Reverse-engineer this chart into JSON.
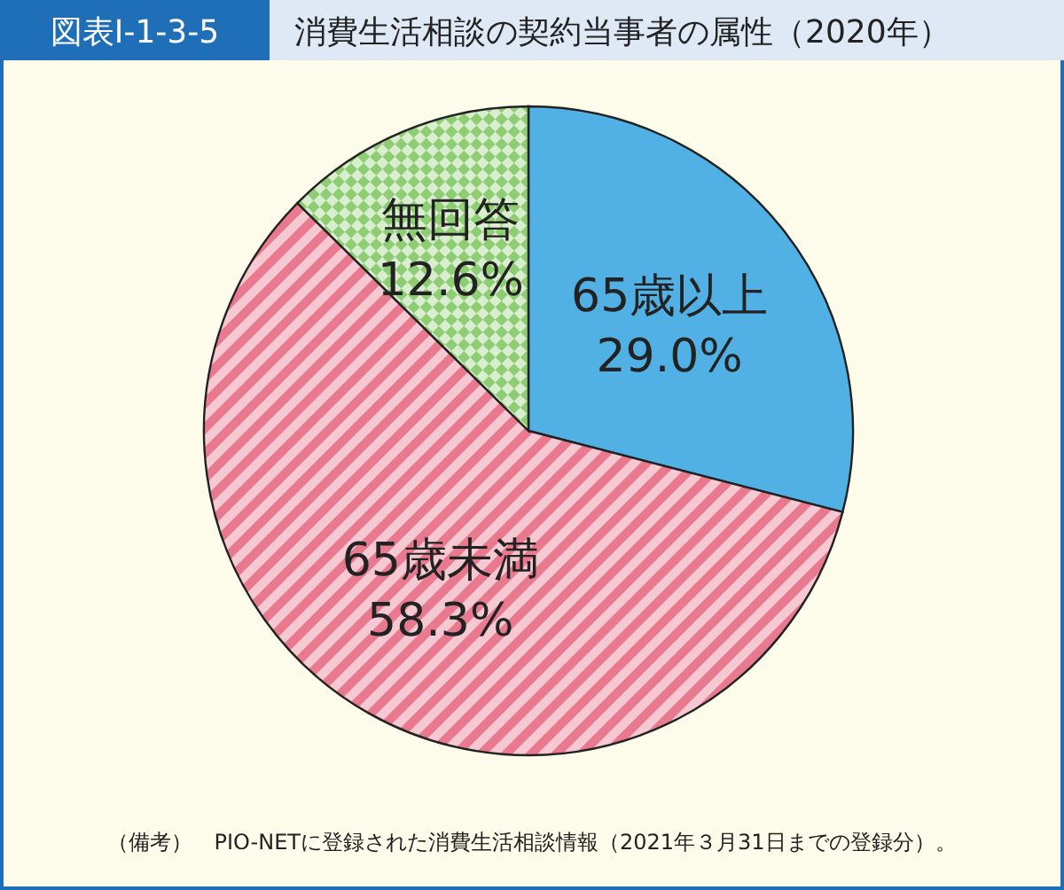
{
  "chart_data": {
    "type": "pie",
    "title": "消費生活相談の契約当事者の属性（2020年）",
    "annotations": [
      "図表Ⅰ-1-3-5",
      "（備考）　PIO-NETに登録された消費生活相談情報（2021年３月31日までの登録分）。"
    ],
    "categories": [
      "65歳以上",
      "65歳未満",
      "無回答"
    ],
    "values": [
      29.0,
      58.3,
      12.6
    ],
    "colors": [
      "#52b1e4",
      "#e8798f",
      "#8fcd74"
    ],
    "value_labels": [
      "29.0%",
      "58.3%",
      "12.6%"
    ]
  }
}
